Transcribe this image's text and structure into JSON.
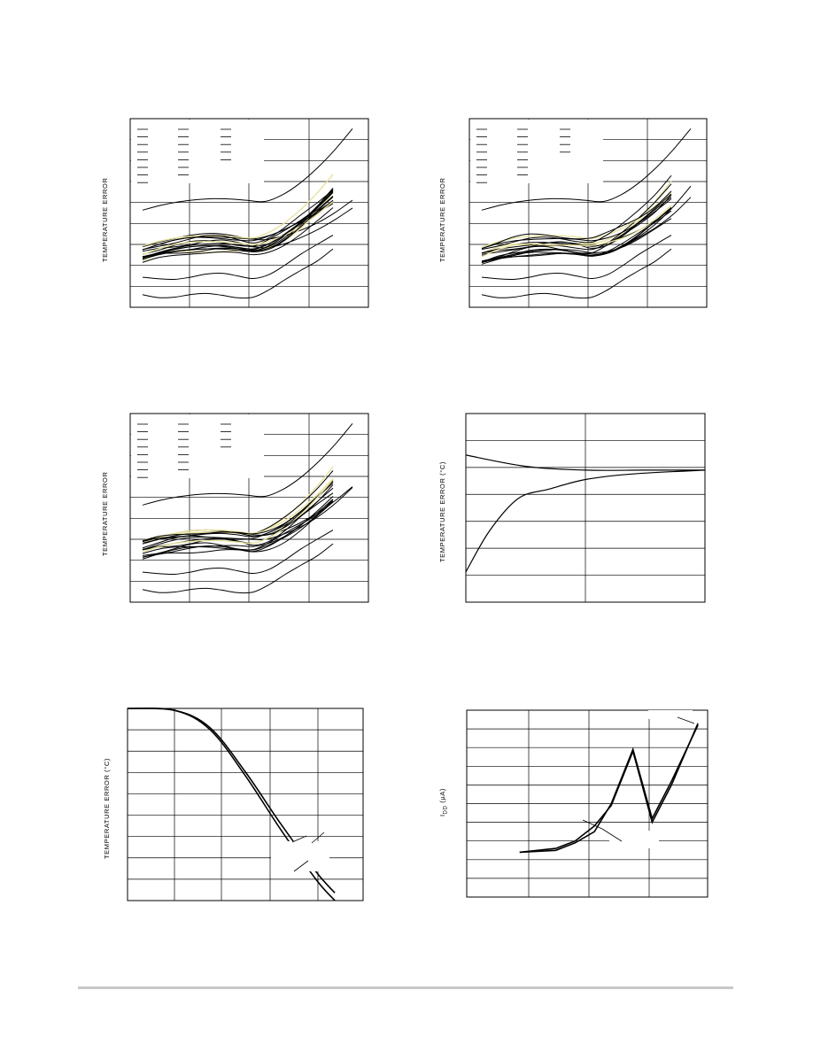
{
  "colors": {
    "line": "#000000",
    "grid": "#000000",
    "highlight": "#e8e2a0",
    "rule": "#c8c8c8"
  },
  "chart_data": [
    {
      "type": "line",
      "ylabel": "TEMPERATURE ERROR",
      "xlabel": "",
      "grid": true,
      "legend": "top-left",
      "legend_entries": 20,
      "series_count": 20,
      "shape": "u"
    },
    {
      "type": "line",
      "ylabel": "TEMPERATURE ERROR",
      "xlabel": "",
      "grid": true,
      "legend": "top-left",
      "legend_entries": 19,
      "series_count": 20,
      "shape": "u"
    },
    {
      "type": "line",
      "ylabel": "TEMPERATURE ERROR",
      "xlabel": "",
      "grid": true,
      "legend": "top-left",
      "legend_entries": 19,
      "series_count": 20,
      "shape": "u"
    },
    {
      "type": "line",
      "ylabel": "TEMPERATURE ERROR (°C)",
      "xlabel": "",
      "grid": true,
      "shape": "settling",
      "series": [
        {
          "name": "",
          "x": [
            0,
            0.25,
            0.5,
            0.75,
            1
          ],
          "y": [
            0.78,
            0.72,
            0.7,
            0.7,
            0.7
          ]
        },
        {
          "name": "",
          "x": [
            0,
            0.1,
            0.22,
            0.35,
            0.5,
            0.7,
            1
          ],
          "y": [
            0.16,
            0.38,
            0.55,
            0.6,
            0.65,
            0.68,
            0.7
          ]
        }
      ]
    },
    {
      "type": "line",
      "ylabel": "TEMPERATURE ERROR (°C)",
      "xlabel": "",
      "grid": true,
      "shape": "rolloff",
      "series": [
        {
          "name": "",
          "x": [
            0,
            0.2,
            0.35,
            0.5,
            0.65,
            0.8,
            0.88
          ],
          "y": [
            1,
            0.99,
            0.9,
            0.67,
            0.4,
            0.15,
            0.04
          ]
        },
        {
          "name": "",
          "x": [
            0,
            0.2,
            0.35,
            0.5,
            0.65,
            0.8,
            0.88
          ],
          "y": [
            1,
            0.99,
            0.89,
            0.65,
            0.37,
            0.11,
            0.0
          ]
        }
      ]
    },
    {
      "type": "line",
      "ylabel": "I",
      "ylabel_sub": "DD",
      "ylabel_unit": " (µA)",
      "xlabel": "",
      "grid": true,
      "shape": "spike",
      "series": [
        {
          "name": "",
          "x": [
            0.22,
            0.37,
            0.45,
            0.53,
            0.6,
            0.69,
            0.77,
            0.85,
            0.96
          ],
          "y": [
            0.24,
            0.26,
            0.3,
            0.38,
            0.49,
            0.78,
            0.4,
            0.6,
            0.93
          ]
        },
        {
          "name": "",
          "x": [
            0.22,
            0.37,
            0.45,
            0.53,
            0.6,
            0.69,
            0.77,
            0.85,
            0.96
          ],
          "y": [
            0.24,
            0.25,
            0.29,
            0.35,
            0.5,
            0.79,
            0.42,
            0.62,
            0.92
          ]
        }
      ]
    }
  ]
}
